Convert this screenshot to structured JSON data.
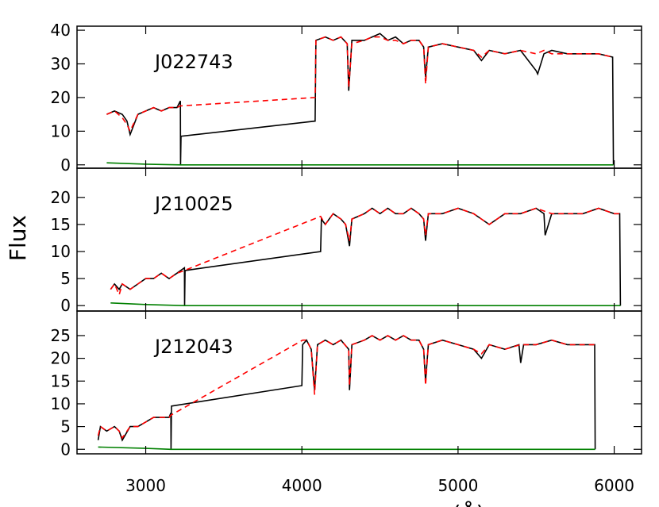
{
  "chart_data": [
    {
      "type": "line",
      "annotation": "J022743",
      "xlim": [
        2560,
        6175
      ],
      "xticks": [
        3000,
        4000,
        5000,
        6000
      ],
      "ylim": [
        -1,
        41.2
      ],
      "yticks": [
        0,
        10,
        20,
        30,
        40
      ],
      "series": [
        {
          "color": "#000000",
          "linestyle": "solid",
          "x": [
            2750,
            2800,
            2850,
            2880,
            2900,
            2950,
            3000,
            3050,
            3100,
            3150,
            3200,
            3222,
            3223,
            3226,
            4085,
            4090,
            4150,
            4200,
            4250,
            4290,
            4300,
            4320,
            4400,
            4450,
            4500,
            4550,
            4600,
            4650,
            4700,
            4750,
            4780,
            4792,
            4810,
            4900,
            5000,
            5100,
            5150,
            5200,
            5300,
            5400,
            5500,
            5510,
            5550,
            5600,
            5700,
            5800,
            5900,
            5990,
            5995
          ],
          "values": [
            15,
            16,
            15,
            13,
            9,
            15,
            16,
            17,
            16,
            17,
            17,
            19,
            0,
            8.5,
            13,
            37,
            38,
            37,
            38,
            36,
            22,
            37,
            37,
            38,
            39,
            37,
            38,
            36,
            37,
            37,
            35,
            26,
            35,
            36,
            35,
            34,
            31,
            34,
            33,
            34,
            28,
            27,
            33,
            34,
            33,
            33,
            33,
            32,
            0
          ]
        },
        {
          "color": "#ff0000",
          "linestyle": "dashed",
          "x": [
            2750,
            2800,
            2850,
            2880,
            2900,
            2950,
            3000,
            3050,
            3100,
            3150,
            3200,
            3222,
            4085,
            4090,
            4150,
            4200,
            4250,
            4290,
            4300,
            4320,
            4400,
            4450,
            4500,
            4550,
            4600,
            4650,
            4700,
            4750,
            4780,
            4792,
            4810,
            4900,
            5000,
            5100,
            5150,
            5200,
            5300,
            5400,
            5500,
            5550,
            5600,
            5700,
            5800,
            5900,
            5990
          ],
          "values": [
            15,
            16,
            14,
            12,
            10,
            15,
            16,
            17,
            16,
            17,
            17,
            17.5,
            20,
            37,
            38,
            37,
            38,
            36,
            23,
            36,
            37,
            38,
            38,
            37,
            37,
            36,
            37,
            37,
            35,
            24,
            35,
            36,
            35,
            34,
            32,
            34,
            33,
            34,
            33,
            34,
            33,
            33,
            33,
            33,
            32
          ]
        },
        {
          "color": "#008000",
          "linestyle": "solid",
          "x": [
            2750,
            3000,
            3222,
            5995
          ],
          "values": [
            0.6,
            0.2,
            0,
            0
          ]
        }
      ]
    },
    {
      "type": "line",
      "annotation": "J210025",
      "ylabel": "Flux",
      "xlim": [
        2560,
        6175
      ],
      "xticks": [
        3000,
        4000,
        5000,
        6000
      ],
      "ylim": [
        -1,
        25.4
      ],
      "yticks": [
        0,
        5,
        10,
        15,
        20
      ],
      "series": [
        {
          "color": "#000000",
          "linestyle": "solid",
          "x": [
            2775,
            2800,
            2830,
            2850,
            2900,
            2950,
            3000,
            3050,
            3100,
            3150,
            3200,
            3248,
            3249,
            3252,
            4120,
            4125,
            4150,
            4200,
            4250,
            4280,
            4305,
            4320,
            4400,
            4450,
            4500,
            4550,
            4600,
            4650,
            4700,
            4750,
            4780,
            4792,
            4810,
            4900,
            5000,
            5100,
            5150,
            5200,
            5300,
            5400,
            5500,
            5550,
            5558,
            5600,
            5700,
            5800,
            5900,
            6000,
            6035,
            6040
          ],
          "values": [
            3,
            4,
            3,
            4,
            3,
            4,
            5,
            5,
            6,
            5,
            6,
            7,
            0,
            6.5,
            10,
            16,
            15,
            17,
            16,
            15,
            11,
            16,
            17,
            18,
            17,
            18,
            17,
            17,
            18,
            17,
            16,
            12,
            17,
            17,
            18,
            17,
            16,
            15,
            17,
            17,
            18,
            17,
            13,
            17,
            17,
            17,
            18,
            17,
            17,
            0
          ]
        },
        {
          "color": "#ff0000",
          "linestyle": "dashed",
          "x": [
            2775,
            2800,
            2830,
            2850,
            2900,
            2950,
            3000,
            3050,
            3100,
            3150,
            3200,
            3248,
            4120,
            4150,
            4200,
            4250,
            4280,
            4305,
            4320,
            4400,
            4450,
            4500,
            4550,
            4600,
            4650,
            4700,
            4750,
            4780,
            4792,
            4810,
            4900,
            5000,
            5100,
            5150,
            5200,
            5300,
            5400,
            5500,
            5600,
            5700,
            5800,
            5900,
            6000,
            6035
          ],
          "values": [
            3,
            4,
            2,
            4,
            3,
            4,
            5,
            5,
            6,
            5,
            6,
            6.5,
            16.5,
            15,
            17,
            16,
            15,
            12,
            16,
            17,
            18,
            17,
            18,
            17,
            17,
            18,
            17,
            16,
            13,
            17,
            17,
            18,
            17,
            16,
            15,
            17,
            17,
            18,
            17,
            17,
            17,
            18,
            17,
            17
          ]
        },
        {
          "color": "#008000",
          "linestyle": "solid",
          "x": [
            2775,
            3000,
            3248,
            6040
          ],
          "values": [
            0.5,
            0.2,
            0,
            0
          ]
        }
      ]
    },
    {
      "type": "line",
      "annotation": "J212043",
      "xlabel": "(Å)",
      "xlim": [
        2560,
        6175
      ],
      "xticks": [
        3000,
        4000,
        5000,
        6000
      ],
      "ylim": [
        -1,
        30.4
      ],
      "yticks": [
        0,
        5,
        10,
        15,
        20,
        25
      ],
      "series": [
        {
          "color": "#000000",
          "linestyle": "solid",
          "x": [
            2695,
            2710,
            2750,
            2800,
            2830,
            2850,
            2900,
            2950,
            3000,
            3050,
            3100,
            3150,
            3161,
            3162,
            3165,
            4000,
            4005,
            4030,
            4060,
            4081,
            4100,
            4150,
            4200,
            4250,
            4300,
            4305,
            4320,
            4400,
            4450,
            4500,
            4550,
            4600,
            4650,
            4700,
            4750,
            4780,
            4792,
            4810,
            4900,
            5000,
            5100,
            5150,
            5200,
            5300,
            5390,
            5401,
            5420,
            5500,
            5600,
            5700,
            5800,
            5875,
            5878
          ],
          "values": [
            2,
            5,
            4,
            5,
            4,
            2,
            5,
            5,
            6,
            7,
            7,
            7,
            8,
            0,
            9.5,
            14,
            23,
            24,
            22,
            13,
            23,
            24,
            23,
            24,
            22,
            13,
            23,
            24,
            25,
            24,
            25,
            24,
            25,
            24,
            24,
            22,
            15,
            23,
            24,
            23,
            22,
            20,
            23,
            22,
            23,
            19,
            23,
            23,
            24,
            23,
            23,
            23,
            0
          ]
        },
        {
          "color": "#ff0000",
          "linestyle": "dashed",
          "x": [
            2695,
            2710,
            2750,
            2800,
            2830,
            2850,
            2900,
            2950,
            3000,
            3050,
            3100,
            3150,
            3161,
            4005,
            4030,
            4060,
            4081,
            4100,
            4150,
            4200,
            4250,
            4300,
            4305,
            4320,
            4400,
            4450,
            4500,
            4550,
            4600,
            4650,
            4700,
            4750,
            4780,
            4792,
            4810,
            4900,
            5000,
            5100,
            5150,
            5200,
            5300,
            5400,
            5500,
            5600,
            5700,
            5800,
            5875
          ],
          "values": [
            3,
            5,
            4,
            5,
            4,
            2.5,
            5,
            5,
            6,
            7,
            7,
            7,
            7.5,
            24,
            24,
            22,
            12,
            23,
            24,
            23,
            24,
            22,
            14,
            23,
            24,
            25,
            24,
            25,
            24,
            25,
            24,
            24,
            22,
            14,
            23,
            24,
            23,
            22,
            21,
            23,
            22,
            23,
            23,
            24,
            23,
            23,
            23
          ]
        },
        {
          "color": "#008000",
          "linestyle": "solid",
          "x": [
            2695,
            3000,
            3161,
            5878
          ],
          "values": [
            0.5,
            0.2,
            0,
            0
          ]
        }
      ]
    }
  ]
}
